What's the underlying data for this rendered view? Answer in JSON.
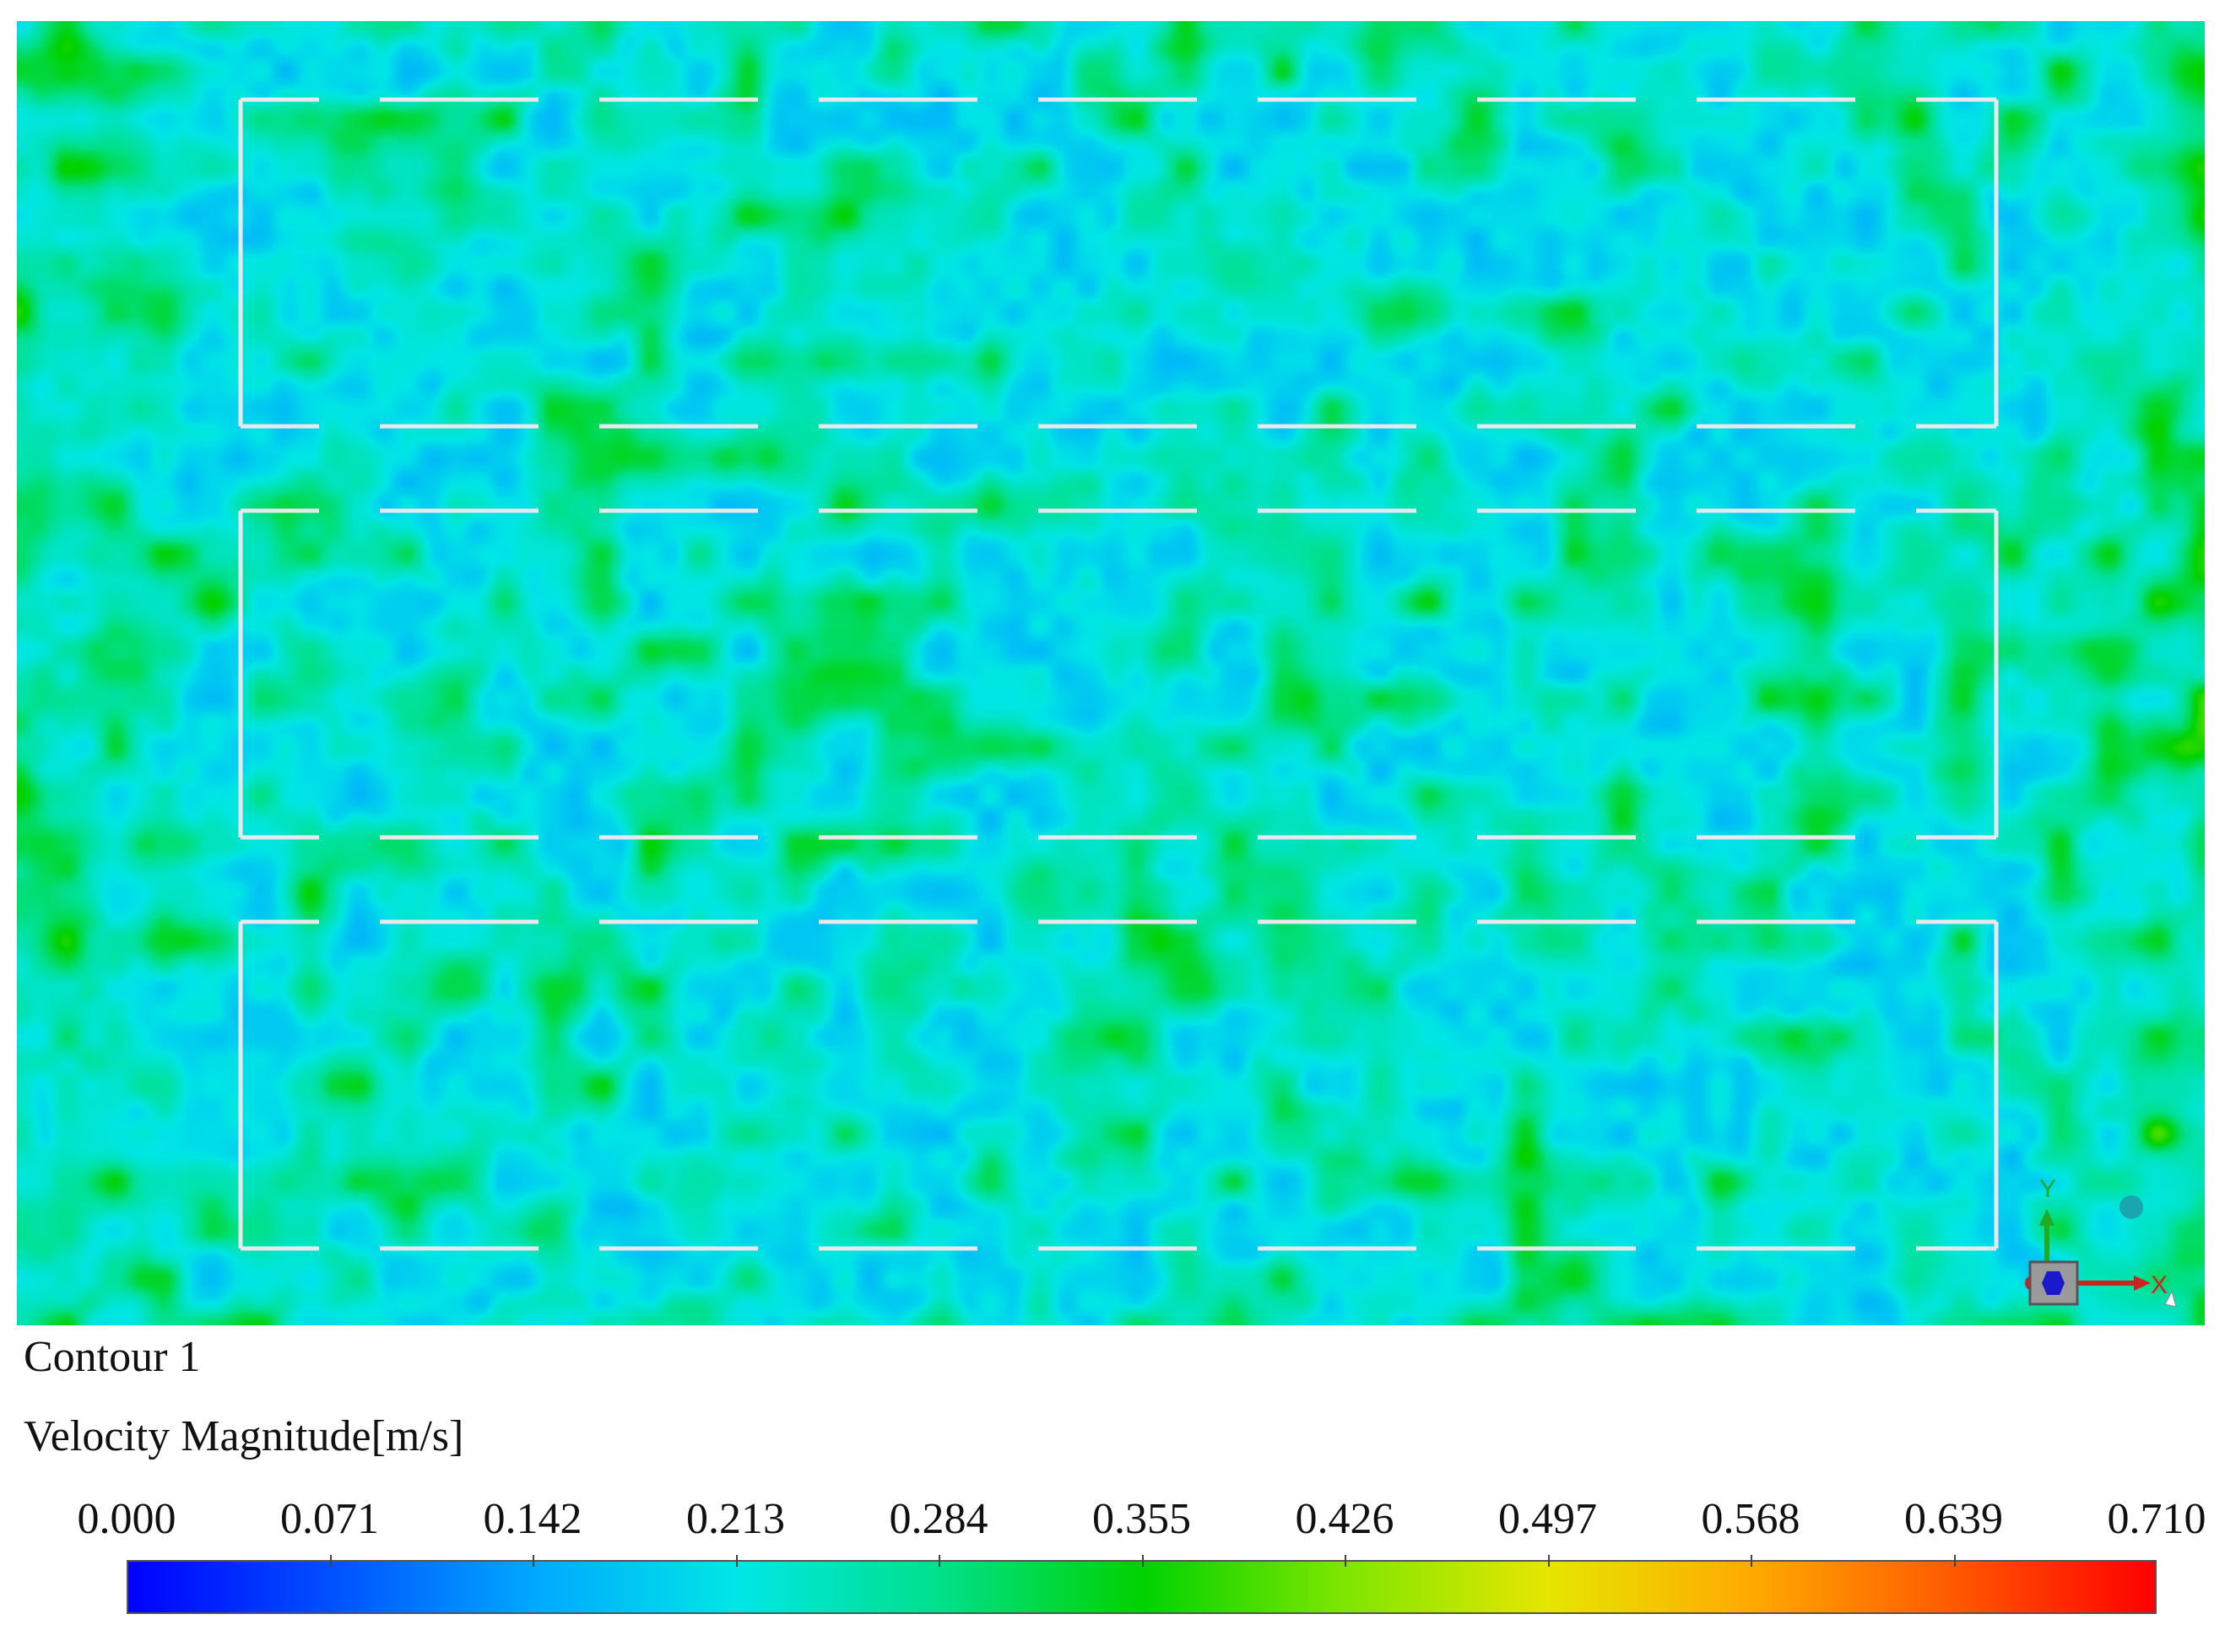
{
  "legend": {
    "title": "Contour 1",
    "variable": "Velocity Magnitude[m/s]",
    "ticks": [
      "0.000",
      "0.071",
      "0.142",
      "0.213",
      "0.284",
      "0.355",
      "0.426",
      "0.497",
      "0.568",
      "0.639",
      "0.710"
    ],
    "range": [
      0.0,
      0.71
    ],
    "colormap": [
      "#0000ff",
      "#0050ff",
      "#00a8ff",
      "#00e6e6",
      "#00e08c",
      "#00d200",
      "#7ee600",
      "#e6e600",
      "#ffaa00",
      "#ff5a00",
      "#ff0000"
    ]
  },
  "triad": {
    "x_label": "X",
    "y_label": "Y"
  },
  "colors": {
    "walls": "#e8e8ee",
    "background": "#ffffff"
  }
}
